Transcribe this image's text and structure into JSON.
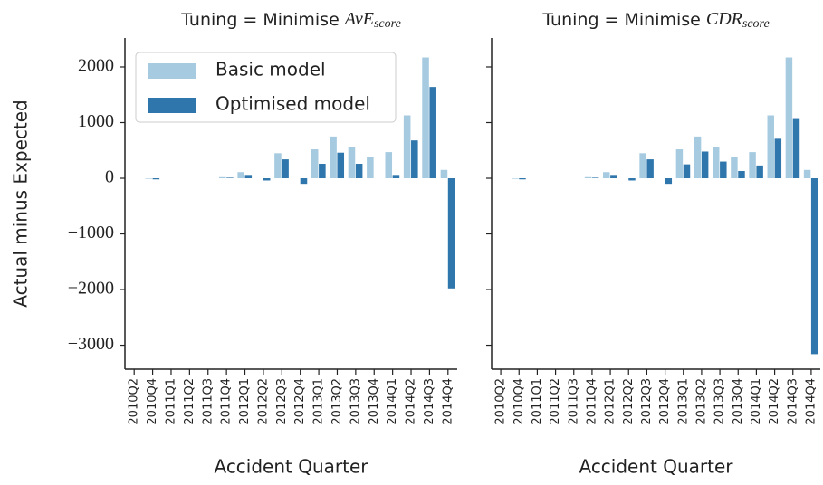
{
  "chart_data": [
    {
      "type": "bar",
      "title": "Tuning = Minimise",
      "title_math": "AvE",
      "title_sub": "score",
      "xlabel": "Accident Quarter",
      "ylabel": "Actual minus Expected",
      "categories": [
        "2010Q2",
        "2010Q4",
        "2011Q1",
        "2011Q2",
        "2011Q3",
        "2011Q4",
        "2012Q1",
        "2012Q2",
        "2012Q3",
        "2012Q4",
        "2013Q1",
        "2013Q2",
        "2013Q3",
        "2013Q4",
        "2014Q1",
        "2014Q2",
        "2014Q3",
        "2014Q4"
      ],
      "series": [
        {
          "name": "Basic model",
          "color": "#a6cbe0",
          "values": [
            0,
            -10,
            0,
            0,
            0,
            20,
            110,
            0,
            450,
            0,
            520,
            750,
            560,
            380,
            470,
            1130,
            2170,
            150
          ]
        },
        {
          "name": "Optimised model",
          "color": "#2f76ac",
          "values": [
            0,
            -20,
            0,
            0,
            0,
            10,
            60,
            -40,
            340,
            -100,
            260,
            460,
            260,
            0,
            60,
            680,
            1640,
            -1980
          ]
        }
      ],
      "ylim": [
        -3430,
        2520
      ],
      "yticks": [
        {
          "value": -3000,
          "label": "−3000"
        },
        {
          "value": -2000,
          "label": "−2000"
        },
        {
          "value": -1000,
          "label": "−1000"
        },
        0,
        1000,
        2000
      ],
      "legend": "upper left"
    },
    {
      "type": "bar",
      "title": "Tuning = Minimise",
      "title_math": "CDR",
      "title_sub": "score",
      "xlabel": "Accident Quarter",
      "categories": [
        "2010Q2",
        "2010Q4",
        "2011Q1",
        "2011Q2",
        "2011Q3",
        "2011Q4",
        "2012Q1",
        "2012Q2",
        "2012Q3",
        "2012Q4",
        "2013Q1",
        "2013Q2",
        "2013Q3",
        "2013Q4",
        "2014Q1",
        "2014Q2",
        "2014Q3",
        "2014Q4"
      ],
      "series": [
        {
          "color": "#a6cbe0",
          "values": [
            0,
            -10,
            0,
            0,
            0,
            20,
            110,
            0,
            450,
            0,
            520,
            750,
            560,
            380,
            470,
            1130,
            2170,
            150
          ]
        },
        {
          "color": "#2f76ac",
          "values": [
            0,
            -20,
            0,
            0,
            0,
            10,
            60,
            -40,
            340,
            -100,
            250,
            480,
            300,
            130,
            230,
            710,
            1080,
            -3160
          ]
        }
      ],
      "sharey": true
    }
  ]
}
